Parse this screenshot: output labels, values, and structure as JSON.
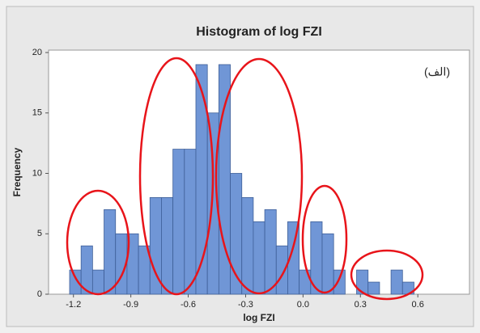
{
  "chart_data": {
    "type": "histogram",
    "title": "Histogram of log FZI",
    "x_label": "log FZI",
    "y_label": "Frequency",
    "annotation": "(الف)",
    "bins": [
      -1.22,
      -1.16,
      -1.1,
      -1.04,
      -0.98,
      -0.92,
      -0.86,
      -0.8,
      -0.74,
      -0.68,
      -0.62,
      -0.56,
      -0.5,
      -0.44,
      -0.38,
      -0.32,
      -0.26,
      -0.2,
      -0.14,
      -0.08,
      -0.02,
      0.04,
      0.1,
      0.16,
      0.22,
      0.28,
      0.34,
      0.4,
      0.46,
      0.52,
      0.58
    ],
    "values": [
      2,
      4,
      2,
      7,
      5,
      5,
      4,
      8,
      8,
      12,
      12,
      19,
      15,
      19,
      10,
      8,
      6,
      7,
      4,
      6,
      2,
      6,
      5,
      2,
      0,
      2,
      1,
      0,
      2,
      1
    ],
    "color": "#7096d6",
    "edge_color": "#3e5f98",
    "xlim": [
      -1.33,
      0.87
    ],
    "ylim": [
      0,
      20.2
    ],
    "xticks": [
      -1.2,
      -0.9,
      -0.6,
      -0.3,
      {
        "value": 0,
        "label": "0.0"
      },
      0.3,
      0.6
    ],
    "yticks": [
      0,
      5,
      10,
      15,
      20
    ],
    "grid": false
  }
}
